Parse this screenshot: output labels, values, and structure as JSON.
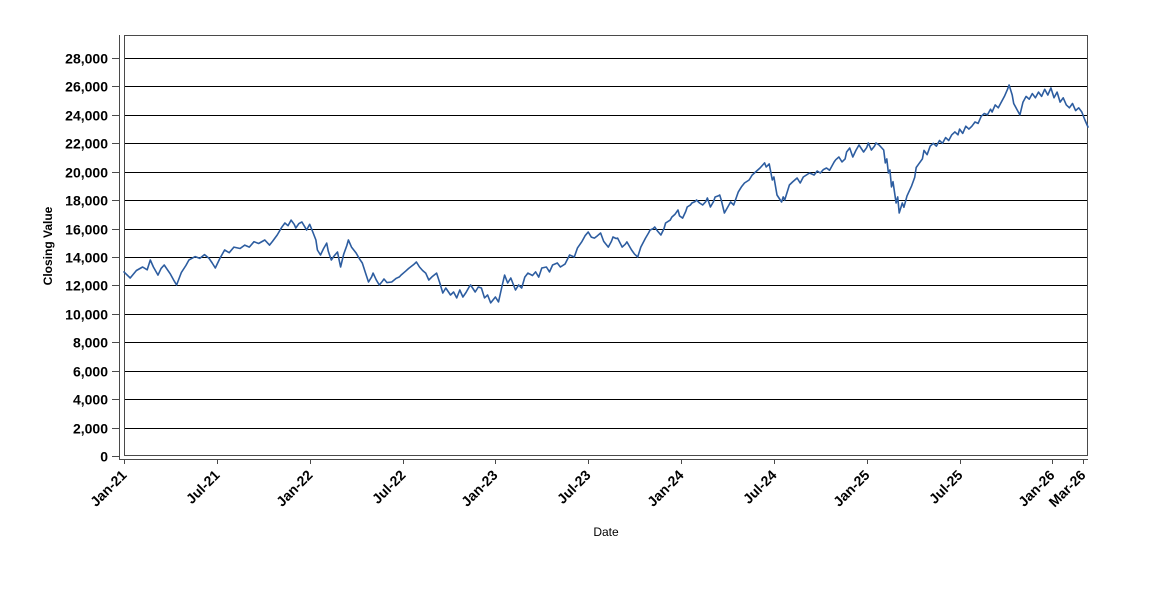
{
  "colors": {
    "series_line": "#2d5da0",
    "gridline": "#000000",
    "plot_border": "#4a4a4a",
    "axis_line": "#4a4a4a",
    "text": "#000000",
    "background": "#ffffff"
  },
  "chart_data": {
    "type": "line",
    "title": "",
    "xlabel": "Date",
    "ylabel": "Closing Value",
    "legend": "none",
    "grid": "horizontal-only",
    "x_unit": "months since Jan-2021",
    "xlim": [
      0,
      62.3
    ],
    "ylim": [
      0,
      29620
    ],
    "x_tick_months": [
      0,
      6,
      12,
      18,
      24,
      30,
      36,
      42,
      48,
      54,
      60,
      62
    ],
    "x_tick_labels": [
      "Jan-21",
      "Jul-21",
      "Jan-22",
      "Jul-22",
      "Jan-23",
      "Jul-23",
      "Jan-24",
      "Jul-24",
      "Jan-25",
      "Jul-25",
      "Jan-26",
      "Mar-26"
    ],
    "y_ticks": [
      0,
      2000,
      4000,
      6000,
      8000,
      10000,
      12000,
      14000,
      16000,
      18000,
      20000,
      22000,
      24000,
      26000,
      28000
    ],
    "y_tick_labels": [
      "0",
      "2,000",
      "4,000",
      "6,000",
      "8,000",
      "10,000",
      "12,000",
      "14,000",
      "16,000",
      "18,000",
      "20,000",
      "22,000",
      "24,000",
      "26,000",
      "28,000"
    ],
    "series": [
      {
        "name": "Closing Value",
        "color": "#2d5da0",
        "points": [
          [
            0,
            12950
          ],
          [
            0.4,
            12520
          ],
          [
            0.8,
            13050
          ],
          [
            1.2,
            13300
          ],
          [
            1.5,
            13100
          ],
          [
            1.7,
            13790
          ],
          [
            1.9,
            13300
          ],
          [
            2.2,
            12730
          ],
          [
            2.4,
            13200
          ],
          [
            2.6,
            13440
          ],
          [
            3.0,
            12800
          ],
          [
            3.2,
            12400
          ],
          [
            3.4,
            12030
          ],
          [
            3.7,
            12900
          ],
          [
            4.0,
            13400
          ],
          [
            4.2,
            13800
          ],
          [
            4.6,
            14030
          ],
          [
            4.9,
            13900
          ],
          [
            5.2,
            14170
          ],
          [
            5.5,
            13900
          ],
          [
            5.7,
            13580
          ],
          [
            5.9,
            13230
          ],
          [
            6.2,
            13900
          ],
          [
            6.5,
            14490
          ],
          [
            6.8,
            14300
          ],
          [
            7.1,
            14700
          ],
          [
            7.5,
            14600
          ],
          [
            7.8,
            14840
          ],
          [
            8.1,
            14700
          ],
          [
            8.4,
            15080
          ],
          [
            8.7,
            14950
          ],
          [
            9.1,
            15200
          ],
          [
            9.4,
            14840
          ],
          [
            9.6,
            15100
          ],
          [
            9.9,
            15550
          ],
          [
            10.2,
            16100
          ],
          [
            10.4,
            16390
          ],
          [
            10.6,
            16200
          ],
          [
            10.8,
            16600
          ],
          [
            11.0,
            16300
          ],
          [
            11.1,
            16040
          ],
          [
            11.3,
            16350
          ],
          [
            11.5,
            16460
          ],
          [
            11.7,
            16100
          ],
          [
            11.8,
            15900
          ],
          [
            12.0,
            16300
          ],
          [
            12.2,
            15760
          ],
          [
            12.4,
            15200
          ],
          [
            12.5,
            14490
          ],
          [
            12.7,
            14140
          ],
          [
            12.9,
            14600
          ],
          [
            13.1,
            14980
          ],
          [
            13.2,
            14400
          ],
          [
            13.4,
            13790
          ],
          [
            13.6,
            14100
          ],
          [
            13.8,
            14350
          ],
          [
            13.9,
            13800
          ],
          [
            14.0,
            13300
          ],
          [
            14.2,
            14200
          ],
          [
            14.4,
            14800
          ],
          [
            14.5,
            15200
          ],
          [
            14.7,
            14700
          ],
          [
            15.0,
            14280
          ],
          [
            15.2,
            13900
          ],
          [
            15.4,
            13580
          ],
          [
            15.6,
            12900
          ],
          [
            15.8,
            12240
          ],
          [
            16.0,
            12600
          ],
          [
            16.1,
            12870
          ],
          [
            16.3,
            12400
          ],
          [
            16.5,
            12030
          ],
          [
            16.7,
            12300
          ],
          [
            16.8,
            12450
          ],
          [
            17.0,
            12200
          ],
          [
            17.3,
            12240
          ],
          [
            17.6,
            12500
          ],
          [
            17.8,
            12600
          ],
          [
            17.9,
            12730
          ],
          [
            18.2,
            13000
          ],
          [
            18.4,
            13200
          ],
          [
            18.7,
            13450
          ],
          [
            18.9,
            13650
          ],
          [
            19.1,
            13300
          ],
          [
            19.3,
            13050
          ],
          [
            19.5,
            12870
          ],
          [
            19.7,
            12380
          ],
          [
            19.9,
            12600
          ],
          [
            20.2,
            12870
          ],
          [
            20.4,
            12200
          ],
          [
            20.6,
            11470
          ],
          [
            20.8,
            11820
          ],
          [
            21.1,
            11330
          ],
          [
            21.3,
            11540
          ],
          [
            21.5,
            11120
          ],
          [
            21.7,
            11680
          ],
          [
            21.9,
            11190
          ],
          [
            22.1,
            11500
          ],
          [
            22.3,
            11890
          ],
          [
            22.4,
            12030
          ],
          [
            22.7,
            11540
          ],
          [
            22.9,
            11890
          ],
          [
            23.1,
            11820
          ],
          [
            23.3,
            11120
          ],
          [
            23.5,
            11330
          ],
          [
            23.7,
            10770
          ],
          [
            24.0,
            11190
          ],
          [
            24.2,
            10840
          ],
          [
            24.4,
            11820
          ],
          [
            24.6,
            12730
          ],
          [
            24.8,
            12170
          ],
          [
            25.0,
            12520
          ],
          [
            25.3,
            11680
          ],
          [
            25.5,
            12030
          ],
          [
            25.7,
            11820
          ],
          [
            25.9,
            12590
          ],
          [
            26.1,
            12870
          ],
          [
            26.4,
            12700
          ],
          [
            26.6,
            12950
          ],
          [
            26.8,
            12590
          ],
          [
            27.0,
            13230
          ],
          [
            27.3,
            13300
          ],
          [
            27.5,
            12950
          ],
          [
            27.7,
            13440
          ],
          [
            28.0,
            13580
          ],
          [
            28.2,
            13300
          ],
          [
            28.5,
            13500
          ],
          [
            28.8,
            14140
          ],
          [
            29.1,
            14000
          ],
          [
            29.3,
            14630
          ],
          [
            29.6,
            15100
          ],
          [
            29.8,
            15500
          ],
          [
            30.0,
            15760
          ],
          [
            30.2,
            15400
          ],
          [
            30.4,
            15330
          ],
          [
            30.6,
            15500
          ],
          [
            30.8,
            15690
          ],
          [
            31.0,
            15100
          ],
          [
            31.3,
            14700
          ],
          [
            31.5,
            15100
          ],
          [
            31.6,
            15410
          ],
          [
            31.8,
            15300
          ],
          [
            31.9,
            15330
          ],
          [
            32.1,
            14900
          ],
          [
            32.2,
            14700
          ],
          [
            32.4,
            14900
          ],
          [
            32.5,
            15060
          ],
          [
            32.8,
            14500
          ],
          [
            33.0,
            14200
          ],
          [
            33.2,
            14000
          ],
          [
            33.4,
            14700
          ],
          [
            33.7,
            15330
          ],
          [
            33.9,
            15700
          ],
          [
            34.0,
            15900
          ],
          [
            34.2,
            16000
          ],
          [
            34.3,
            16110
          ],
          [
            34.5,
            15800
          ],
          [
            34.7,
            15550
          ],
          [
            34.9,
            16000
          ],
          [
            35.0,
            16390
          ],
          [
            35.3,
            16600
          ],
          [
            35.4,
            16810
          ],
          [
            35.6,
            17000
          ],
          [
            35.8,
            17310
          ],
          [
            35.9,
            16900
          ],
          [
            36.1,
            16740
          ],
          [
            36.3,
            17200
          ],
          [
            36.4,
            17520
          ],
          [
            36.6,
            17650
          ],
          [
            36.7,
            17800
          ],
          [
            36.9,
            17900
          ],
          [
            37.0,
            18010
          ],
          [
            37.2,
            17800
          ],
          [
            37.4,
            17660
          ],
          [
            37.6,
            17900
          ],
          [
            37.7,
            18150
          ],
          [
            37.9,
            17520
          ],
          [
            38.1,
            17900
          ],
          [
            38.2,
            18220
          ],
          [
            38.4,
            18300
          ],
          [
            38.5,
            18360
          ],
          [
            38.6,
            18000
          ],
          [
            38.8,
            17100
          ],
          [
            39.2,
            17870
          ],
          [
            39.4,
            17660
          ],
          [
            39.7,
            18580
          ],
          [
            39.9,
            18930
          ],
          [
            40.1,
            19210
          ],
          [
            40.4,
            19420
          ],
          [
            40.6,
            19770
          ],
          [
            41.1,
            20260
          ],
          [
            41.4,
            20620
          ],
          [
            41.5,
            20330
          ],
          [
            41.7,
            20550
          ],
          [
            41.9,
            19420
          ],
          [
            42.0,
            19630
          ],
          [
            42.2,
            18360
          ],
          [
            42.5,
            17870
          ],
          [
            42.6,
            18230
          ],
          [
            42.7,
            18010
          ],
          [
            43.0,
            19070
          ],
          [
            43.2,
            19280
          ],
          [
            43.5,
            19560
          ],
          [
            43.7,
            19210
          ],
          [
            43.9,
            19630
          ],
          [
            44.3,
            19910
          ],
          [
            44.6,
            19770
          ],
          [
            44.8,
            20050
          ],
          [
            45.0,
            19910
          ],
          [
            45.2,
            20150
          ],
          [
            45.4,
            20260
          ],
          [
            45.6,
            20100
          ],
          [
            45.9,
            20690
          ],
          [
            46.0,
            20850
          ],
          [
            46.2,
            21040
          ],
          [
            46.4,
            20690
          ],
          [
            46.6,
            20900
          ],
          [
            46.7,
            21390
          ],
          [
            46.9,
            21670
          ],
          [
            47.1,
            21040
          ],
          [
            47.3,
            21500
          ],
          [
            47.5,
            21880
          ],
          [
            47.8,
            21390
          ],
          [
            48.0,
            21700
          ],
          [
            48.1,
            22020
          ],
          [
            48.3,
            21530
          ],
          [
            48.5,
            21800
          ],
          [
            48.6,
            22020
          ],
          [
            48.8,
            21880
          ],
          [
            49.1,
            21530
          ],
          [
            49.2,
            20620
          ],
          [
            49.3,
            20900
          ],
          [
            49.4,
            19910
          ],
          [
            49.5,
            20120
          ],
          [
            49.6,
            18930
          ],
          [
            49.7,
            19300
          ],
          [
            49.9,
            17800
          ],
          [
            50.0,
            18230
          ],
          [
            50.1,
            17100
          ],
          [
            50.3,
            17800
          ],
          [
            50.4,
            17500
          ],
          [
            50.6,
            18300
          ],
          [
            50.9,
            19000
          ],
          [
            51.1,
            19600
          ],
          [
            51.2,
            20300
          ],
          [
            51.4,
            20600
          ],
          [
            51.6,
            20900
          ],
          [
            51.7,
            21500
          ],
          [
            51.9,
            21200
          ],
          [
            52.1,
            21800
          ],
          [
            52.3,
            22000
          ],
          [
            52.5,
            21800
          ],
          [
            52.7,
            22200
          ],
          [
            52.9,
            22000
          ],
          [
            53.1,
            22400
          ],
          [
            53.3,
            22200
          ],
          [
            53.5,
            22600
          ],
          [
            53.7,
            22800
          ],
          [
            53.9,
            22600
          ],
          [
            54.0,
            23000
          ],
          [
            54.2,
            22700
          ],
          [
            54.4,
            23200
          ],
          [
            54.6,
            23000
          ],
          [
            54.8,
            23200
          ],
          [
            55.0,
            23500
          ],
          [
            55.2,
            23400
          ],
          [
            55.4,
            23900
          ],
          [
            55.6,
            24100
          ],
          [
            55.8,
            24000
          ],
          [
            56.0,
            24400
          ],
          [
            56.1,
            24200
          ],
          [
            56.3,
            24700
          ],
          [
            56.5,
            24500
          ],
          [
            56.7,
            24900
          ],
          [
            56.9,
            25300
          ],
          [
            57.1,
            25800
          ],
          [
            57.2,
            26100
          ],
          [
            57.4,
            25400
          ],
          [
            57.5,
            24800
          ],
          [
            57.7,
            24400
          ],
          [
            57.9,
            24000
          ],
          [
            58.1,
            24900
          ],
          [
            58.3,
            25300
          ],
          [
            58.5,
            25100
          ],
          [
            58.7,
            25500
          ],
          [
            58.9,
            25200
          ],
          [
            59.1,
            25600
          ],
          [
            59.3,
            25300
          ],
          [
            59.5,
            25800
          ],
          [
            59.7,
            25400
          ],
          [
            59.9,
            25900
          ],
          [
            60.1,
            25200
          ],
          [
            60.3,
            25600
          ],
          [
            60.5,
            24900
          ],
          [
            60.7,
            25200
          ],
          [
            60.9,
            24700
          ],
          [
            61.1,
            24500
          ],
          [
            61.3,
            24800
          ],
          [
            61.5,
            24300
          ],
          [
            61.7,
            24500
          ],
          [
            61.9,
            24200
          ],
          [
            62.1,
            23640
          ],
          [
            62.3,
            23150
          ]
        ]
      }
    ]
  }
}
